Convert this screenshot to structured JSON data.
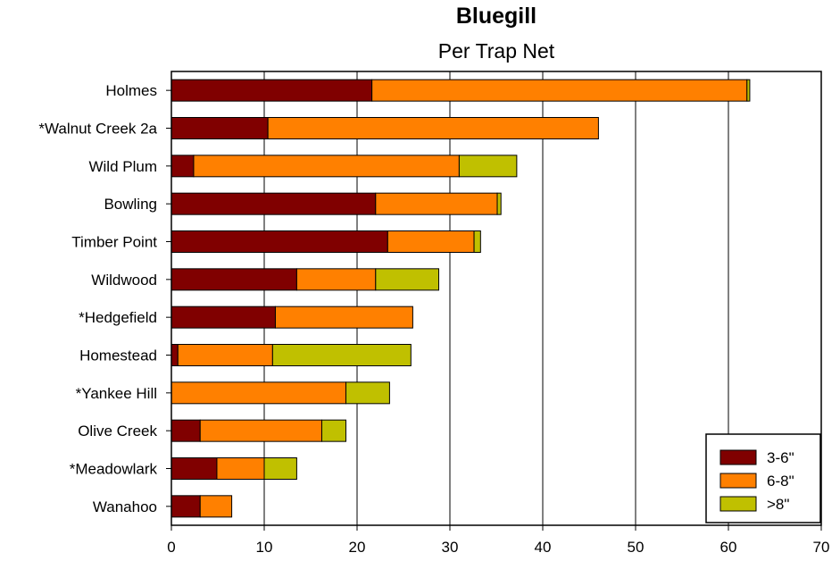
{
  "chart_data": {
    "type": "bar",
    "orientation": "horizontal",
    "stacked": true,
    "title": "Bluegill",
    "subtitle": "Per Trap Net",
    "xlabel": "",
    "ylabel": "",
    "xlim": [
      0,
      70
    ],
    "x_ticks": [
      0,
      10,
      20,
      30,
      40,
      50,
      60,
      70
    ],
    "grid": "vertical",
    "legend_position": "bottom-right",
    "categories": [
      "Holmes",
      "*Walnut Creek 2a",
      "Wild Plum",
      "Bowling",
      "Timber Point",
      "Wildwood",
      "*Hedgefield",
      "Homestead",
      "*Yankee Hill",
      "Olive Creek",
      "*Meadowlark",
      "Wanahoo"
    ],
    "series": [
      {
        "name": "3-6\"",
        "color": "#800000",
        "values": [
          21.6,
          10.4,
          2.4,
          22,
          23.3,
          13.5,
          11.2,
          0.7,
          0,
          3.1,
          4.9,
          3.1
        ]
      },
      {
        "name": "6-8\"",
        "color": "#ff8000",
        "values": [
          40.4,
          35.6,
          28.6,
          13.1,
          9.3,
          8.5,
          14.8,
          10.2,
          18.8,
          13.1,
          5.1,
          3.4
        ]
      },
      {
        "name": ">8\"",
        "color": "#c0c000",
        "values": [
          0.3,
          0,
          6.2,
          0.4,
          0.7,
          6.8,
          0,
          14.9,
          4.7,
          2.6,
          3.5,
          0
        ]
      }
    ]
  }
}
